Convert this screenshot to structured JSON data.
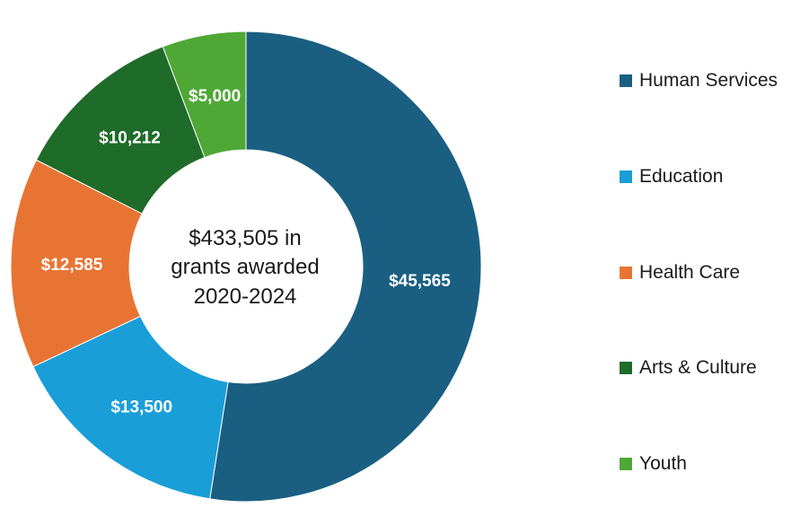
{
  "chart_data": {
    "type": "pie",
    "variant": "donut",
    "title": "",
    "center_label_lines": [
      "$433,505 in",
      "grants awarded",
      "2020-2024"
    ],
    "categories": [
      "Human Services",
      "Education",
      "Health Care",
      "Arts & Culture",
      "Youth"
    ],
    "values": [
      45565,
      13500,
      12585,
      10212,
      5000
    ],
    "value_labels": [
      "$45,565",
      "$13,500",
      "$12,585",
      "$10,212",
      "$5,000"
    ],
    "colors": [
      "#1a5f82",
      "#1a9ed8",
      "#e87434",
      "#1f6b2a",
      "#4fa836"
    ],
    "legend": {
      "position": "right",
      "items": [
        {
          "label": "Human Services",
          "color": "#1a5f82"
        },
        {
          "label": "Education",
          "color": "#1a9ed8"
        },
        {
          "label": "Health Care",
          "color": "#e87434"
        },
        {
          "label": "Arts & Culture",
          "color": "#1f6b2a"
        },
        {
          "label": "Youth",
          "color": "#4fa836"
        }
      ]
    }
  }
}
